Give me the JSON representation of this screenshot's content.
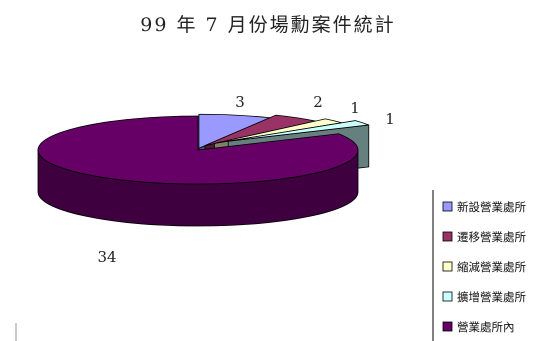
{
  "chart_data": {
    "type": "pie",
    "title": "99 年 7 月份場勳案件統計",
    "categories": [
      "新設營業處所",
      "遷移營業處所",
      "縮減營業處所",
      "擴增營業處所",
      "營業處所內"
    ],
    "values": [
      3,
      2,
      1,
      1,
      34
    ],
    "data_labels": [
      "3",
      "2",
      "1",
      "1",
      "34"
    ],
    "colors": [
      "#9999ff",
      "#993366",
      "#ffffcc",
      "#ccffff",
      "#660066"
    ],
    "legend_placement": "right",
    "style": "3d-exploded"
  }
}
